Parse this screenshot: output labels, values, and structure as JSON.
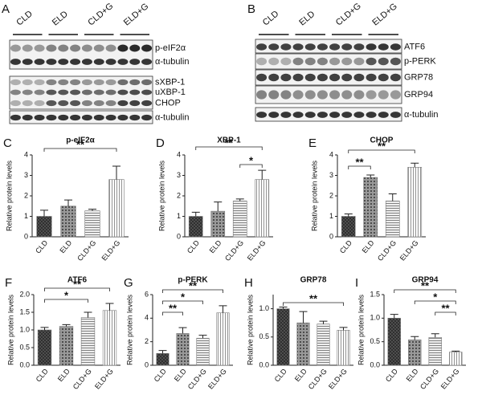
{
  "blots": [
    {
      "panel": "A",
      "lanes": [
        "CLD",
        "ELD",
        "CLD+G",
        "ELD+G"
      ],
      "bands": [
        "p-eIF2α",
        "α-tubulin",
        "sXBP-1",
        "uXBP-1",
        "CHOP",
        "α-tubulin"
      ]
    },
    {
      "panel": "B",
      "lanes": [
        "CLD",
        "ELD",
        "CLD+G",
        "ELD+G"
      ],
      "bands": [
        "ATF6",
        "p-PERK",
        "GRP78",
        "GRP94",
        "α-tubulin"
      ]
    }
  ],
  "chart_data": [
    {
      "type": "bar",
      "panel": "C",
      "title": "p-eIF2α",
      "ylabel": "Relative protein levels",
      "categories": [
        "CLD",
        "ELD",
        "CLD+G",
        "ELD+G"
      ],
      "values": [
        1.0,
        1.5,
        1.27,
        2.8
      ],
      "errors": [
        0.3,
        0.3,
        0.08,
        0.65
      ],
      "color": "#777777",
      "ylim": [
        0,
        4
      ],
      "yticks": [
        0,
        1,
        2,
        3,
        4
      ],
      "annotations": [
        "**"
      ]
    },
    {
      "type": "bar",
      "panel": "D",
      "title": "XBP-1",
      "ylabel": "Relative protein levels",
      "categories": [
        "CLD",
        "ELD",
        "CLD+G",
        "ELD+G"
      ],
      "values": [
        1.0,
        1.25,
        1.75,
        2.8
      ],
      "errors": [
        0.2,
        0.45,
        0.1,
        0.45
      ],
      "color": "#777777",
      "ylim": [
        0,
        4
      ],
      "yticks": [
        0,
        1,
        2,
        3,
        4
      ],
      "annotations": [
        "**",
        "*"
      ]
    },
    {
      "type": "bar",
      "panel": "E",
      "title": "CHOP",
      "ylabel": "Relative protein levels",
      "categories": [
        "CLD",
        "ELD",
        "CLD+G",
        "ELD+G"
      ],
      "values": [
        1.0,
        2.9,
        1.75,
        3.4
      ],
      "errors": [
        0.12,
        0.12,
        0.35,
        0.2
      ],
      "color": "#777777",
      "ylim": [
        0,
        4
      ],
      "yticks": [
        0,
        1,
        2,
        3,
        4
      ],
      "annotations": [
        "**",
        "**"
      ]
    },
    {
      "type": "bar",
      "panel": "F",
      "title": "ATF6",
      "ylabel": "Relative protein levels",
      "categories": [
        "CLD",
        "ELD",
        "CLD+G",
        "ELD+G"
      ],
      "values": [
        1.0,
        1.1,
        1.35,
        1.55
      ],
      "errors": [
        0.07,
        0.05,
        0.15,
        0.2
      ],
      "color": "#777777",
      "ylim": [
        0,
        2
      ],
      "yticks": [
        {
          "value": 0,
          "label": "0.0"
        },
        0.5,
        {
          "value": 1,
          "label": "1.0"
        },
        1.5,
        {
          "value": 2,
          "label": "2.0"
        }
      ],
      "annotations": [
        "**",
        "*"
      ]
    },
    {
      "type": "bar",
      "panel": "G",
      "title": "p-PERK",
      "ylabel": "Relative protein levels",
      "categories": [
        "CLD",
        "ELD",
        "CLD+G",
        "ELD+G"
      ],
      "values": [
        1.0,
        2.7,
        2.3,
        4.45
      ],
      "errors": [
        0.25,
        0.5,
        0.25,
        0.6
      ],
      "color": "#777777",
      "ylim": [
        0,
        6
      ],
      "yticks": [
        0,
        2,
        4,
        6
      ],
      "annotations": [
        "**",
        "*",
        "**"
      ]
    },
    {
      "type": "bar",
      "panel": "H",
      "title": "GRP78",
      "ylabel": "Relative protein levels",
      "categories": [
        "CLD",
        "ELD",
        "CLD+G",
        "ELD+G"
      ],
      "values": [
        1.0,
        0.75,
        0.73,
        0.62
      ],
      "errors": [
        0.03,
        0.2,
        0.05,
        0.05
      ],
      "color": "#777777",
      "ylim": [
        0,
        1.25
      ],
      "yticks": [
        {
          "value": 0,
          "label": "0.0"
        },
        0.5,
        {
          "value": 1,
          "label": "1.0"
        }
      ],
      "annotations": [
        "**"
      ]
    },
    {
      "type": "bar",
      "panel": "I",
      "title": "GRP94",
      "ylabel": "Relative protein levels",
      "categories": [
        "CLD",
        "ELD",
        "CLD+G",
        "ELD+G"
      ],
      "values": [
        1.0,
        0.54,
        0.59,
        0.28
      ],
      "errors": [
        0.08,
        0.07,
        0.08,
        0.02
      ],
      "color": "#777777",
      "ylim": [
        0,
        1.5
      ],
      "yticks": [
        {
          "value": 0,
          "label": "0.0"
        },
        0.5,
        {
          "value": 1,
          "label": "1.0"
        },
        1.5
      ],
      "annotations": [
        "**",
        "*",
        "**"
      ]
    }
  ]
}
